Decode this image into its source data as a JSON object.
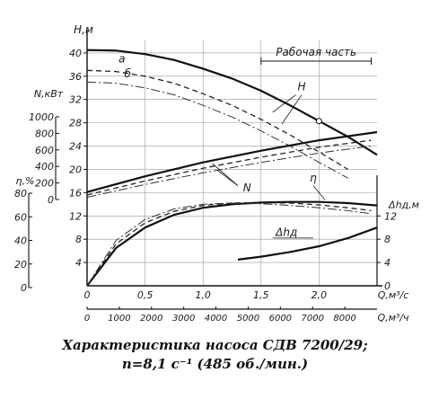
{
  "chart_data": {
    "type": "line",
    "caption": {
      "line1": "Характеристика насоса СДВ 7200/29;",
      "line2": "n=8,1 с⁻¹ (485 об./мин.)"
    },
    "axes": {
      "x_main": {
        "label": "Q,м³/с",
        "range": [
          0,
          2.5
        ],
        "ticks": [
          "0",
          "0,5",
          "1,0",
          "1,5",
          "2,0"
        ],
        "tick_values": [
          0,
          0.5,
          1.0,
          1.5,
          2.0
        ]
      },
      "x_secondary": {
        "label": "Q,м³/ч",
        "range": [
          0,
          9000
        ],
        "ticks": [
          "0",
          "1000",
          "2000",
          "3000",
          "4000",
          "5000",
          "6000",
          "7000",
          "8000"
        ],
        "tick_values": [
          0,
          1000,
          2000,
          3000,
          4000,
          5000,
          6000,
          7000,
          8000
        ]
      },
      "y_head": {
        "label": "Н,м",
        "range": [
          0,
          44
        ],
        "ticks": [
          "4",
          "8",
          "12",
          "16",
          "20",
          "24",
          "28",
          "32",
          "36",
          "40"
        ],
        "tick_values": [
          4,
          8,
          12,
          16,
          20,
          24,
          28,
          32,
          36,
          40
        ]
      },
      "y_power": {
        "label": "N,кВт",
        "range": [
          0,
          1000
        ],
        "ticks": [
          "0",
          "200",
          "400",
          "600",
          "800",
          "1000"
        ],
        "tick_values": [
          0,
          200,
          400,
          600,
          800,
          1000
        ]
      },
      "y_eff": {
        "label": "η,%",
        "range": [
          0,
          80
        ],
        "ticks": [
          "0",
          "20",
          "40",
          "60",
          "80"
        ],
        "tick_values": [
          0,
          20,
          40,
          60,
          80
        ]
      },
      "y_npsh": {
        "label": "Δhд,м",
        "range": [
          0,
          14
        ],
        "ticks": [
          "0",
          "4",
          "8",
          "12"
        ],
        "tick_values": [
          0,
          4,
          8,
          12
        ]
      }
    },
    "annotations": {
      "working_zone": "Рабочая часть",
      "working_zone_range": [
        1.5,
        2.45
      ],
      "label_H": "H",
      "label_N": "N",
      "label_eta": "η",
      "label_npsh": "Δhд",
      "label_a": "а",
      "label_b": "б"
    },
    "series": [
      {
        "name": "H",
        "style": "solid-bold",
        "x": [
          0,
          0.25,
          0.5,
          0.75,
          1.0,
          1.25,
          1.5,
          1.75,
          2.0,
          2.25,
          2.5
        ],
        "y": [
          40.5,
          40.4,
          39.8,
          38.8,
          37.3,
          35.6,
          33.5,
          31.0,
          28.3,
          25.6,
          22.5
        ]
      },
      {
        "name": "а",
        "style": "dashed",
        "x": [
          0,
          0.25,
          0.5,
          0.75,
          1.0,
          1.25,
          1.5,
          1.75,
          2.0,
          2.25
        ],
        "y": [
          37.0,
          36.8,
          36.0,
          34.8,
          33.0,
          31.0,
          28.6,
          25.9,
          23.0,
          20.0
        ]
      },
      {
        "name": "б",
        "style": "thin",
        "x": [
          0,
          0.25,
          0.5,
          0.75,
          1.0,
          1.25,
          1.5,
          1.75,
          2.0,
          2.25
        ],
        "y": [
          35.0,
          34.8,
          34.0,
          32.8,
          31.0,
          29.0,
          26.6,
          24.0,
          21.2,
          18.5
        ]
      },
      {
        "name": "N",
        "style": "solid-bold",
        "x": [
          0,
          0.5,
          1.0,
          1.5,
          2.0,
          2.5
        ],
        "y": [
          16.1,
          18.8,
          21.2,
          23.2,
          25.0,
          26.4
        ]
      },
      {
        "name": "N а",
        "style": "dashed",
        "x": [
          0,
          0.5,
          1.0,
          1.5,
          2.0,
          2.45
        ],
        "y": [
          15.6,
          18.0,
          20.2,
          22.1,
          23.8,
          25.0
        ]
      },
      {
        "name": "N б",
        "style": "thin",
        "x": [
          0,
          0.5,
          1.0,
          1.5,
          2.0,
          2.45
        ],
        "y": [
          15.2,
          17.4,
          19.4,
          21.2,
          22.8,
          24.0
        ]
      },
      {
        "name": "η",
        "style": "solid-bold",
        "x": [
          0,
          0.25,
          0.5,
          0.75,
          1.0,
          1.25,
          1.5,
          1.75,
          2.0,
          2.25,
          2.5
        ],
        "y": [
          0,
          6.5,
          10.0,
          12.2,
          13.4,
          14.0,
          14.3,
          14.4,
          14.4,
          14.2,
          13.8
        ]
      },
      {
        "name": "η а",
        "style": "dashed",
        "x": [
          0,
          0.25,
          0.5,
          0.75,
          1.0,
          1.25,
          1.5,
          1.75,
          2.0,
          2.25,
          2.45
        ],
        "y": [
          0,
          7.2,
          10.8,
          12.8,
          13.8,
          14.2,
          14.3,
          14.2,
          13.9,
          13.4,
          12.9
        ]
      },
      {
        "name": "η б",
        "style": "thin",
        "x": [
          0,
          0.25,
          0.5,
          0.75,
          1.0,
          1.25,
          1.5,
          1.75,
          2.0,
          2.25,
          2.45
        ],
        "y": [
          0,
          7.8,
          11.4,
          13.2,
          14.0,
          14.2,
          14.1,
          13.8,
          13.4,
          12.9,
          12.4
        ]
      },
      {
        "name": "Δhд",
        "style": "solid-bold",
        "x": [
          1.3,
          1.5,
          1.75,
          2.0,
          2.25,
          2.5
        ],
        "y": [
          4.5,
          5.0,
          5.8,
          6.8,
          8.2,
          10.0
        ]
      }
    ]
  }
}
